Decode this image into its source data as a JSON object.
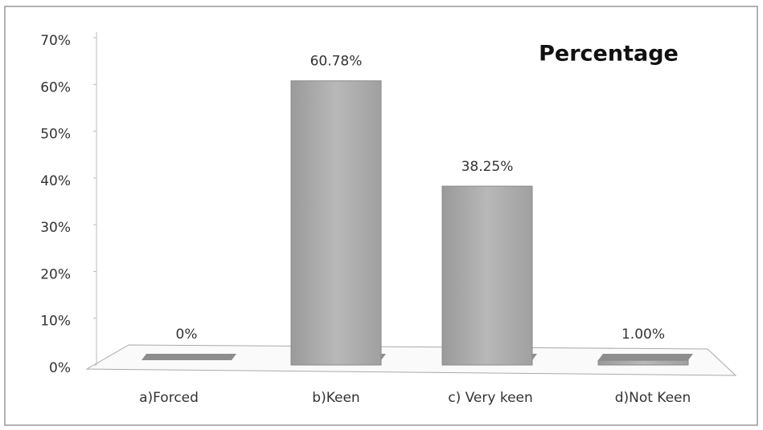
{
  "chart_data": {
    "type": "bar",
    "title": "Percentage",
    "categories": [
      "a)Forced",
      "b)Keen",
      "c) Very keen",
      "d)Not Keen"
    ],
    "values": [
      0,
      60.78,
      38.25,
      1.0
    ],
    "value_labels": [
      "0%",
      "60.78%",
      "38.25%",
      "1.00%"
    ],
    "color": "#a9a9a9",
    "ylim": [
      0,
      70
    ],
    "yticks": [
      {
        "value": 0,
        "label": "0%"
      },
      {
        "value": 10,
        "label": "10%"
      },
      {
        "value": 20,
        "label": "20%"
      },
      {
        "value": 30,
        "label": "30%"
      },
      {
        "value": 40,
        "label": "40%"
      },
      {
        "value": 50,
        "label": "50%"
      },
      {
        "value": 60,
        "label": "60%"
      },
      {
        "value": 70,
        "label": "70%"
      }
    ]
  }
}
